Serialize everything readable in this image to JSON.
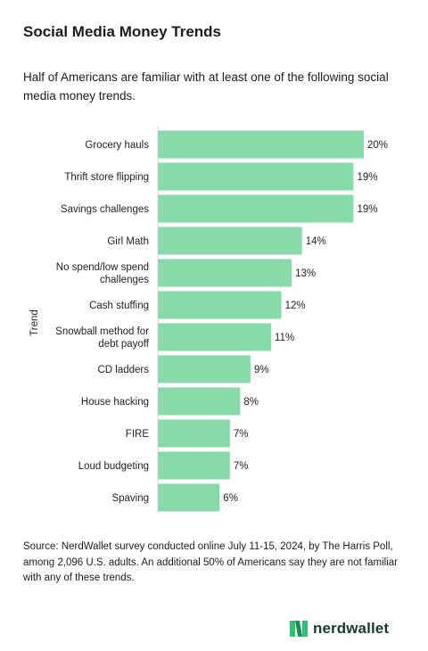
{
  "title": "Social Media Money Trends",
  "subtitle": "Half of Americans are familiar with at least one of the following social media money trends.",
  "source": "Source: NerdWallet survey conducted online July 11-15, 2024, by The Harris Poll, among 2,096 U.S. adults. An additional 50% of Americans say they are not familiar with any of these trends.",
  "brand": {
    "name": "nerdwallet",
    "logo_icon": "nerdwallet-n-logo",
    "color": "#2ec271"
  },
  "colors": {
    "bar": "#86dba9",
    "axis": "#d4d4d4"
  },
  "chart_data": {
    "type": "bar",
    "orientation": "horizontal",
    "ylabel": "Trend",
    "xlabel": "",
    "xlim": [
      0,
      20
    ],
    "grid": false,
    "categories": [
      [
        "Grocery hauls"
      ],
      [
        "Thrift store flipping"
      ],
      [
        "Savings challenges"
      ],
      [
        "Girl Math"
      ],
      [
        "No spend/low spend",
        "challenges"
      ],
      [
        "Cash stuffing"
      ],
      [
        "Snowball method for",
        "debt payoff"
      ],
      [
        "CD ladders"
      ],
      [
        "House hacking"
      ],
      [
        "FIRE"
      ],
      [
        "Loud budgeting"
      ],
      [
        "Spaving"
      ]
    ],
    "values": [
      20,
      19,
      19,
      14,
      13,
      12,
      11,
      9,
      8,
      7,
      7,
      6
    ],
    "value_labels": [
      "20%",
      "19%",
      "19%",
      "14%",
      "13%",
      "12%",
      "11%",
      "9%",
      "8%",
      "7%",
      "7%",
      "6%"
    ]
  }
}
